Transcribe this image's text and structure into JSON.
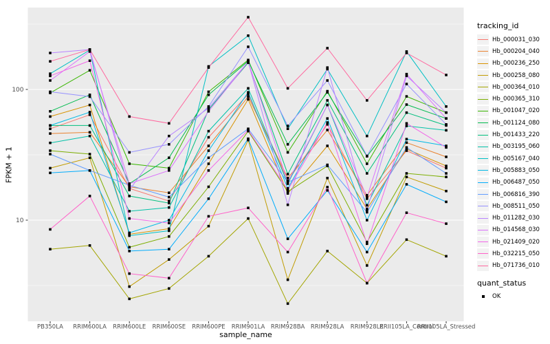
{
  "style": {
    "panel_bg": "#EBEBEB",
    "grid_color": "#FFFFFF",
    "tick_text_color": "#4D4D4D",
    "tick_mark_color": "#333333",
    "point_color": "#000000",
    "background": "#FFFFFF"
  },
  "chart_data": {
    "type": "line",
    "title": "",
    "xlabel": "sample_name",
    "ylabel": "FPKM + 1",
    "y_scale": "log10",
    "y_ticks": [
      10,
      100
    ],
    "y_tick_labels": [
      "10",
      "100"
    ],
    "y_minor_breaks": [
      3.1623,
      31.623,
      316.23
    ],
    "ylim": [
      1.6,
      430
    ],
    "grid": true,
    "legend_position": "right",
    "point_shape": "filled-square",
    "categories": [
      "PB350LA",
      "RRIM600LA",
      "RRIM600LE",
      "RRIM600SE",
      "RRIM600PE",
      "RRIM901LA",
      "RRIM928BA",
      "RRIM928LA",
      "RRIM928LE",
      "RRII105LA_Control",
      "RRII105LA_Stressed"
    ],
    "legend_color": {
      "title": "tracking_id"
    },
    "legend_shape": {
      "title": "quant_status",
      "items": [
        {
          "label": "OK",
          "shape": "filled-square",
          "color": "#000000"
        }
      ]
    },
    "series": [
      {
        "name": "Hb_000031_030",
        "color": "#F8766D",
        "values": [
          50,
          64,
          17.5,
          14,
          43,
          92,
          20,
          54,
          14.6,
          34,
          25
        ]
      },
      {
        "name": "Hb_000204_040",
        "color": "#EA8331",
        "values": [
          46,
          47,
          18,
          16.2,
          37,
          88,
          21,
          49,
          15.5,
          39.2,
          30.5
        ]
      },
      {
        "name": "Hb_000236_250",
        "color": "#D89200",
        "values": [
          62,
          76,
          7.8,
          8.6,
          27,
          84,
          16,
          37,
          12.2,
          35,
          26
        ]
      },
      {
        "name": "Hb_000258_080",
        "color": "#C09B00",
        "values": [
          25,
          30,
          3.1,
          5,
          9,
          41,
          3.5,
          21,
          4.5,
          21.4,
          16.7
        ]
      },
      {
        "name": "Hb_000364_010",
        "color": "#A3A500",
        "values": [
          6,
          6.4,
          2.5,
          3,
          5.3,
          10.3,
          2.3,
          5.8,
          3.3,
          7.1,
          5.3
        ]
      },
      {
        "name": "Hb_000365_310",
        "color": "#7CAE00",
        "values": [
          34,
          32,
          6.2,
          7.5,
          18,
          48,
          16.5,
          26,
          6.8,
          22.8,
          21.4
        ]
      },
      {
        "name": "Hb_001047_020",
        "color": "#39B600",
        "values": [
          94,
          140,
          27,
          25,
          96,
          168,
          33,
          97,
          27,
          88.5,
          66.5
        ]
      },
      {
        "name": "Hb_001124_080",
        "color": "#00BB4E",
        "values": [
          68,
          91,
          19,
          30,
          91,
          165,
          38,
          95,
          30.8,
          76.6,
          60
        ]
      },
      {
        "name": "Hb_001433_220",
        "color": "#00BF7D",
        "values": [
          53,
          53,
          15.3,
          13.5,
          70,
          160,
          22.5,
          82.5,
          22.8,
          66.5,
          53
        ]
      },
      {
        "name": "Hb_003195_060",
        "color": "#00C1A7",
        "values": [
          39,
          44,
          11.7,
          12.5,
          48,
          102,
          19,
          76,
          13,
          52.6,
          48.7
        ]
      },
      {
        "name": "Hb_005167_040",
        "color": "#00BFC4",
        "values": [
          132,
          200,
          7.6,
          8.3,
          150,
          258,
          50,
          143,
          44,
          195,
          74
        ]
      },
      {
        "name": "Hb_005883_050",
        "color": "#00B8E5",
        "values": [
          53,
          67,
          8,
          10,
          34,
          95,
          17.5,
          60,
          10,
          41.7,
          37
        ]
      },
      {
        "name": "Hb_006487_050",
        "color": "#00ACFC",
        "values": [
          23,
          24,
          5.8,
          6,
          14.6,
          42,
          7.2,
          16.9,
          5.7,
          18.8,
          13.8
        ]
      },
      {
        "name": "Hb_006816_390",
        "color": "#619CFF",
        "values": [
          32,
          24,
          18.5,
          15,
          30,
          50,
          19.5,
          26.5,
          11.5,
          36,
          22.8
        ]
      },
      {
        "name": "Hb_008511_050",
        "color": "#9590FF",
        "values": [
          96,
          88,
          33,
          38,
          74,
          212,
          52.6,
          117,
          31,
          110,
          54
        ]
      },
      {
        "name": "Hb_011282_030",
        "color": "#B983FF",
        "values": [
          190,
          202,
          17,
          44,
          72,
          163,
          13.1,
          147,
          12,
          127,
          66.5
        ]
      },
      {
        "name": "Hb_014568_030",
        "color": "#DB72FB",
        "values": [
          117,
          195,
          19,
          24,
          68,
          163,
          19.5,
          76,
          15,
          131,
          60
        ]
      },
      {
        "name": "Hb_021409_020",
        "color": "#F265E8",
        "values": [
          127,
          166,
          10.3,
          9.5,
          24,
          49,
          17,
          55.8,
          6.6,
          55,
          36
        ]
      },
      {
        "name": "Hb_032215_050",
        "color": "#FF61C9",
        "values": [
          8.5,
          15.3,
          3.9,
          3.6,
          10.7,
          12.4,
          5.7,
          17.9,
          3.3,
          11.4,
          9.4
        ]
      },
      {
        "name": "Hb_071736_010",
        "color": "#FF689F",
        "values": [
          164,
          202,
          62,
          55,
          147,
          357,
          102,
          207,
          82.5,
          190,
          129
        ]
      }
    ]
  }
}
